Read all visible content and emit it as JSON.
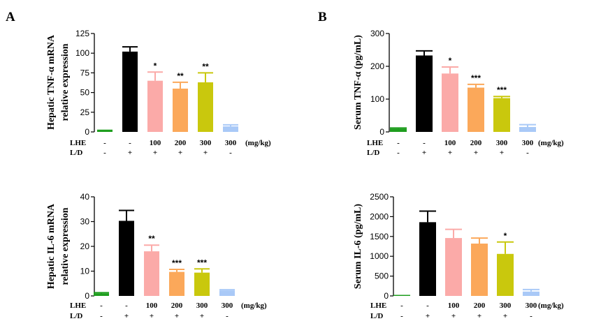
{
  "panel_labels": [
    "A",
    "B"
  ],
  "colors": [
    "#1f9e1f",
    "#000000",
    "#fbaaa8",
    "#fba85a",
    "#c9c80d",
    "#a9c9f7"
  ],
  "chart_data": [
    {
      "type": "bar",
      "panel": "A",
      "ylabel": [
        "Hepatic TNF-α mRNA",
        "relative expression"
      ],
      "ylim": [
        0,
        125
      ],
      "yticks": [
        0,
        25,
        50,
        75,
        100,
        125
      ],
      "values": [
        1.5,
        102,
        65,
        55,
        63,
        7
      ],
      "errors": [
        0.5,
        6,
        11,
        8,
        12,
        2
      ],
      "significance": [
        "",
        "",
        "*",
        "**",
        "**",
        ""
      ],
      "row_labels": [
        "LHE",
        "L/D"
      ],
      "lhe": [
        "-",
        "-",
        "100",
        "200",
        "300",
        "300"
      ],
      "ld": [
        "-",
        "+",
        "+",
        "+",
        "+",
        "-"
      ],
      "unit": "(mg/kg)"
    },
    {
      "type": "bar",
      "panel": "B",
      "ylabel": [
        "Serum TNF-α (pg/mL)"
      ],
      "ylim": [
        0,
        300
      ],
      "yticks": [
        0,
        100,
        200,
        300
      ],
      "values": [
        10,
        233,
        178,
        135,
        103,
        15
      ],
      "errors": [
        2,
        14,
        20,
        10,
        5,
        7
      ],
      "significance": [
        "",
        "",
        "*",
        "***",
        "***",
        ""
      ],
      "row_labels": [
        "LHE",
        "L/D"
      ],
      "lhe": [
        "-",
        "-",
        "100",
        "200",
        "300",
        "300"
      ],
      "ld": [
        "-",
        "+",
        "+",
        "+",
        "+",
        "-"
      ],
      "unit": "(mg/kg)"
    },
    {
      "type": "bar",
      "panel": "A",
      "ylabel": [
        "Hepatic IL-6 mRNA",
        "relative expression"
      ],
      "ylim": [
        0,
        40
      ],
      "yticks": [
        0,
        10,
        20,
        30,
        40
      ],
      "values": [
        1,
        30.3,
        18,
        9.7,
        9.4,
        2.2
      ],
      "errors": [
        0.3,
        4.2,
        2.5,
        1,
        1.5,
        0.3
      ],
      "significance": [
        "",
        "",
        "**",
        "***",
        "***",
        ""
      ],
      "row_labels": [
        "LHE",
        "L/D"
      ],
      "lhe": [
        "-",
        "-",
        "100",
        "200",
        "300",
        "300"
      ],
      "ld": [
        "-",
        "+",
        "+",
        "+",
        "+",
        "-"
      ],
      "unit": "(mg/kg)"
    },
    {
      "type": "bar",
      "panel": "B",
      "ylabel": [
        "Serum IL-6 (pg/mL)"
      ],
      "ylim": [
        0,
        2500
      ],
      "yticks": [
        0,
        500,
        1000,
        1500,
        2000,
        2500
      ],
      "values": [
        0,
        1860,
        1460,
        1320,
        1060,
        110
      ],
      "errors": [
        0,
        280,
        220,
        140,
        300,
        50
      ],
      "significance": [
        "",
        "",
        "",
        "",
        "*",
        ""
      ],
      "row_labels": [
        "LHE",
        "L/D"
      ],
      "lhe": [
        "-",
        "-",
        "100",
        "200",
        "300",
        "300"
      ],
      "ld": [
        "-",
        "+",
        "+",
        "+",
        "+",
        "-"
      ],
      "unit": "(mg/kg)"
    }
  ]
}
